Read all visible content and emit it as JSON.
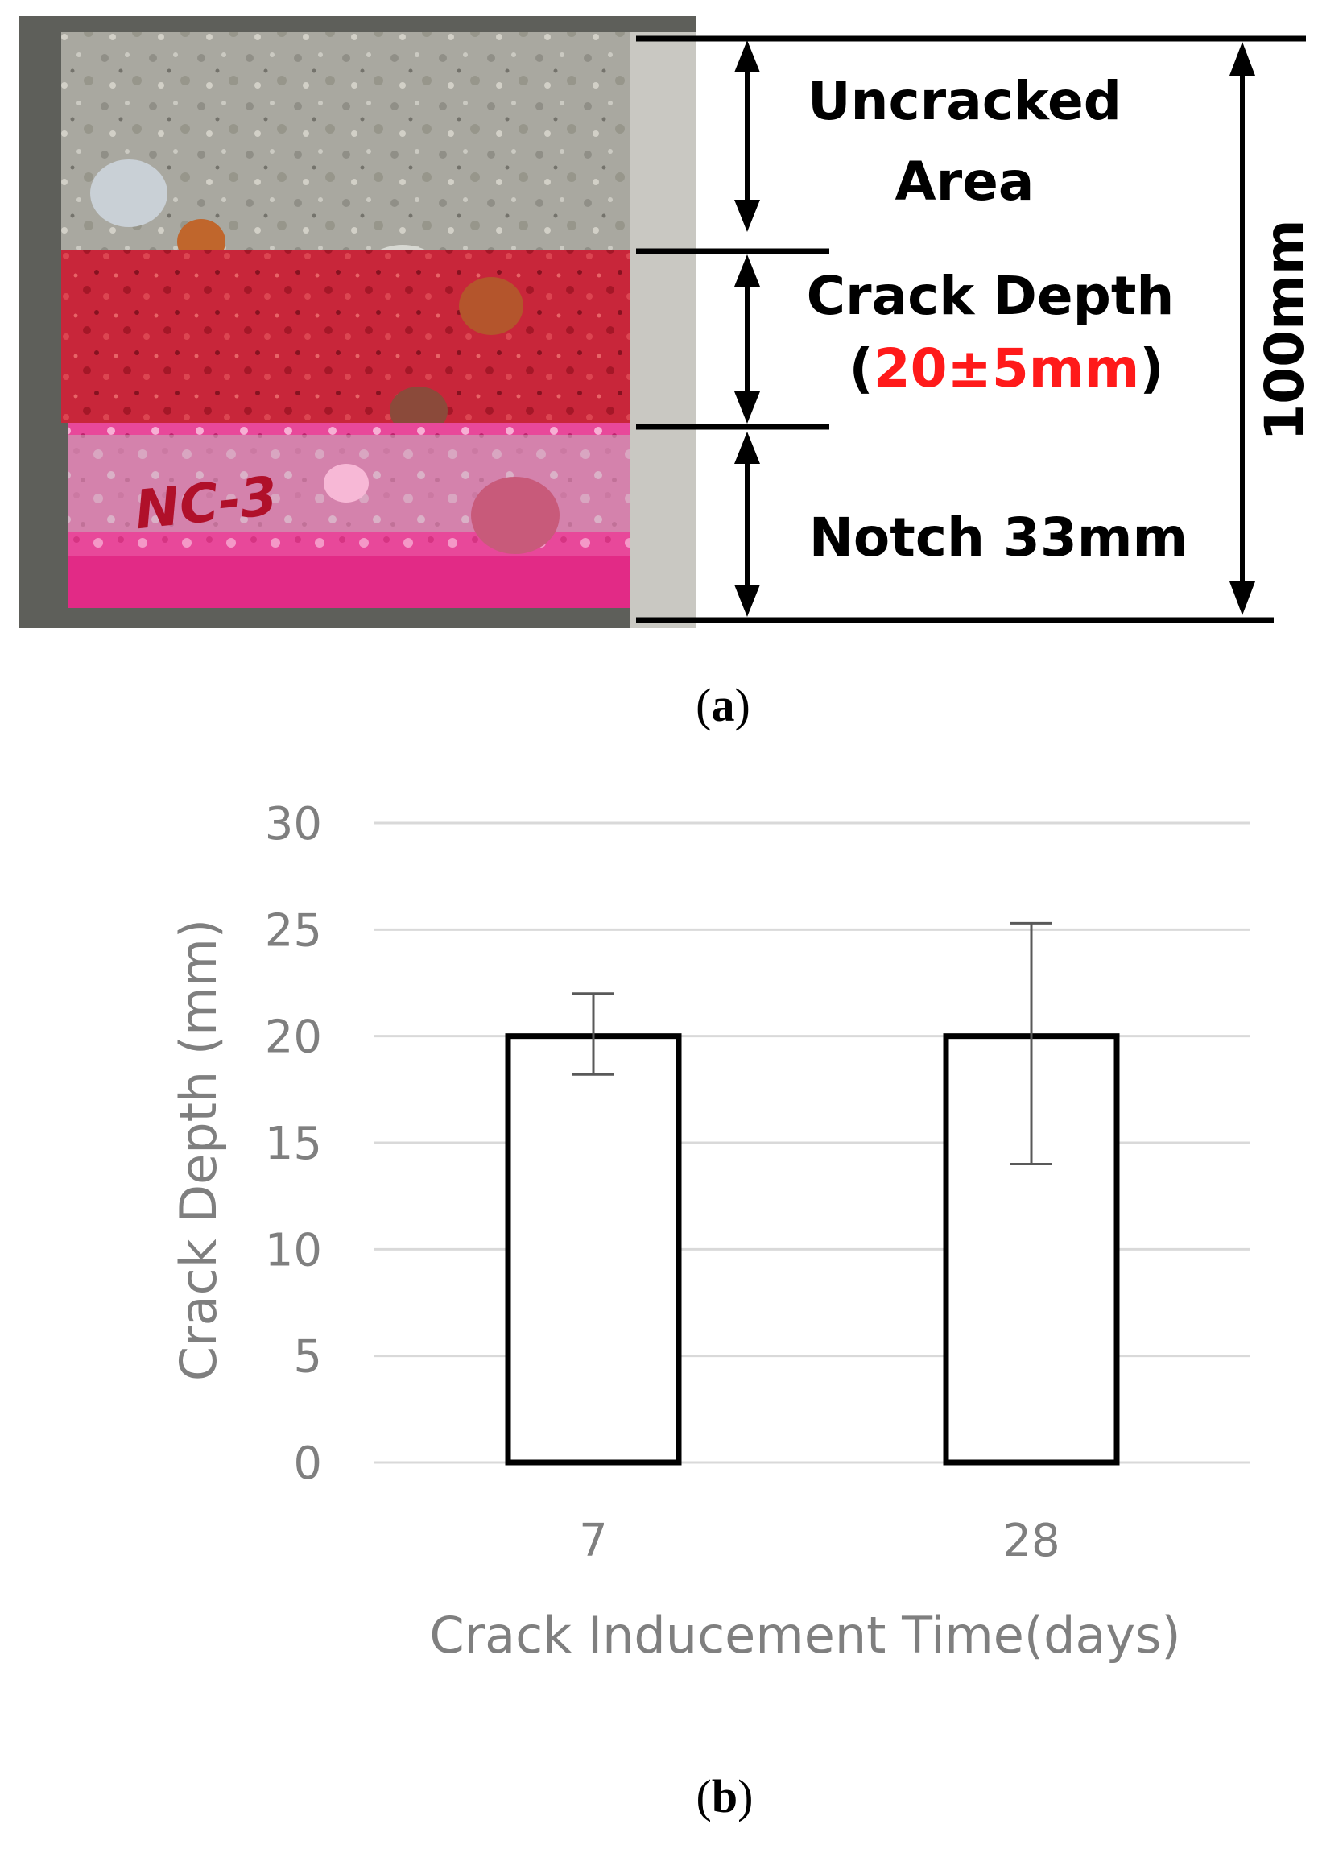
{
  "panel_a": {
    "label_open": "(",
    "label_letter": "a",
    "label_close": ")",
    "specimen_marking": "NC-3",
    "uncracked_line1": "Uncracked",
    "uncracked_line2": "Area",
    "crack_depth_line1": "Crack Depth",
    "crack_depth_open": "(",
    "crack_depth_value": "20±5mm",
    "crack_depth_close": ")",
    "notch": "Notch 33mm",
    "total_height": "100mm",
    "colors": {
      "concrete": "#a9a8a0",
      "crack_zone": "#c8263a",
      "notch_zone": "#e8489a",
      "highlight": "#ff1a1a"
    }
  },
  "panel_b": {
    "label_open": "(",
    "label_letter": "b",
    "label_close": ")"
  },
  "chart_data": {
    "type": "bar",
    "categories": [
      "7",
      "28"
    ],
    "values": [
      20,
      20
    ],
    "error_low": [
      18.2,
      14.0
    ],
    "error_high": [
      22.0,
      25.3
    ],
    "title": "",
    "xlabel": "Crack Inducement Time(days)",
    "ylabel": "Crack Depth (mm)",
    "ylim": [
      0,
      30
    ],
    "yticks": [
      "0",
      "5",
      "10",
      "15",
      "20",
      "25",
      "30"
    ],
    "grid": true,
    "colors": {
      "bar_fill": "#ffffff",
      "bar_edge": "#000000",
      "grid": "#d9d9d9",
      "text": "#7f7f7f"
    }
  }
}
